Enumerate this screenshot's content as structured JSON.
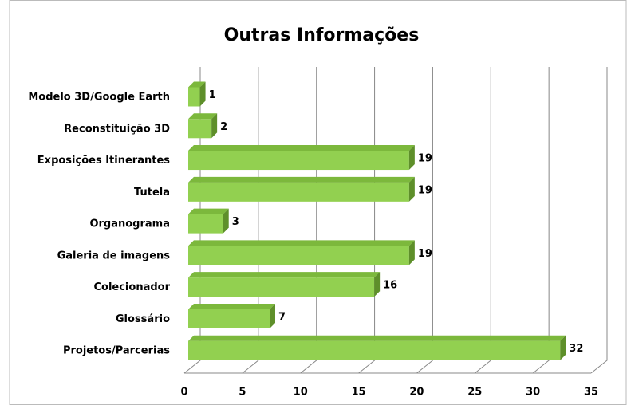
{
  "chart_data": {
    "type": "bar",
    "orientation": "horizontal",
    "title": "Outras Informações",
    "categories": [
      "Modelo 3D/Google Earth",
      "Reconstituição 3D",
      "Exposições Itinerantes",
      "Tutela",
      "Organograma",
      "Galeria de imagens",
      "Colecionador",
      "Glossário",
      "Projetos/Parcerias"
    ],
    "values": [
      1,
      2,
      19,
      19,
      3,
      19,
      16,
      7,
      32
    ],
    "color": "#92d050",
    "xlim": [
      0,
      35
    ],
    "xticks": [
      0,
      5,
      10,
      15,
      20,
      25,
      30,
      35
    ],
    "grid": true
  }
}
